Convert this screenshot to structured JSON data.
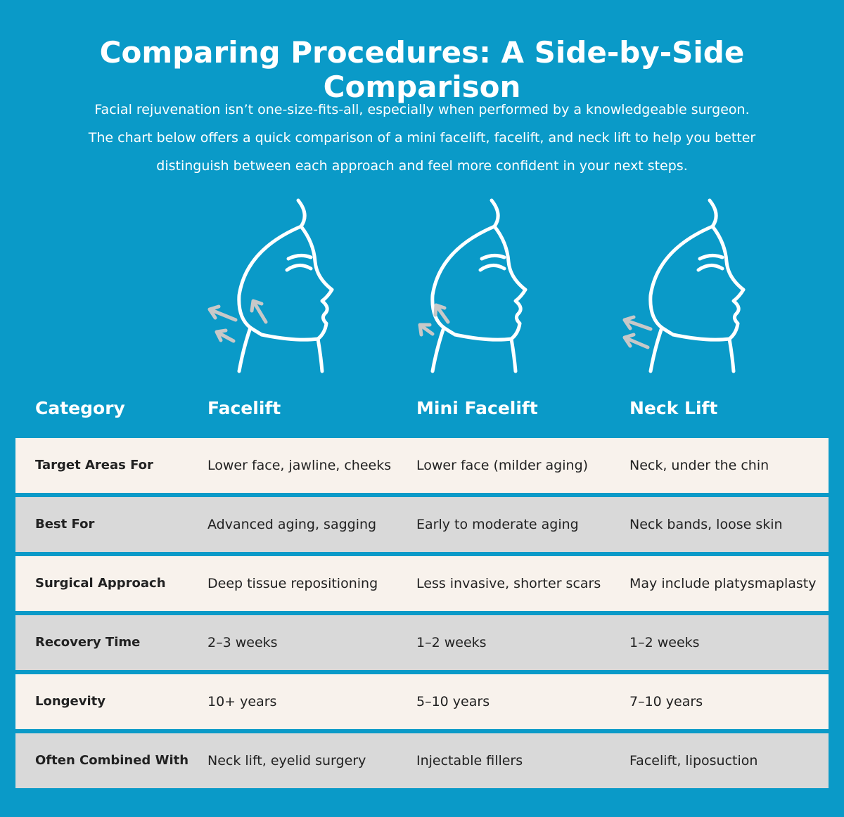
{
  "header": {
    "title": "Comparing Procedures: A Side-by-Side Comparison",
    "subtitle": [
      "Facial rejuvenation isn’t one-size-fits-all, especially when performed by a knowledgeable surgeon.",
      "The chart below offers a quick comparison of a mini facelift, facelift, and neck lift to help you better",
      "distinguish between each approach and feel more confident in your next steps."
    ]
  },
  "table": {
    "columns": [
      "Category",
      "Facelift",
      "Mini Facelift",
      "Neck Lift"
    ],
    "rows": [
      [
        "Target Areas For",
        "Lower face, jawline, cheeks",
        "Lower face (milder aging)",
        "Neck, under the chin"
      ],
      [
        "Best For",
        "Advanced aging, sagging",
        "Early to moderate aging",
        "Neck bands, loose skin"
      ],
      [
        "Surgical Approach",
        "Deep tissue repositioning",
        "Less invasive, shorter scars",
        "May include platysmaplasty"
      ],
      [
        "Recovery Time",
        "2–3 weeks",
        "1–2 weeks",
        "1–2 weeks"
      ],
      [
        "Longevity",
        "10+ years",
        "5–10 years",
        "7–10 years"
      ],
      [
        "Often Combined With",
        "Neck lift, eyelid surgery",
        "Injectable fillers",
        "Facelift, liposuction"
      ]
    ]
  }
}
